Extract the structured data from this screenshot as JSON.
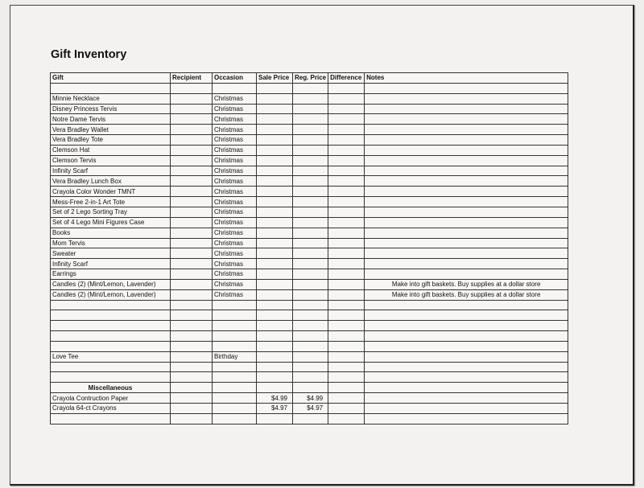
{
  "title": "Gift Inventory",
  "columns": [
    "Gift",
    "Recipient",
    "Occasion",
    "Sale Price",
    "Reg. Price",
    "Difference",
    "Notes"
  ],
  "rows": [
    {
      "gift": "",
      "recipient": "",
      "occasion": "",
      "sale": "",
      "reg": "",
      "diff": "",
      "notes": ""
    },
    {
      "gift": "Minnie Necklace",
      "recipient": "",
      "occasion": "Christmas",
      "sale": "",
      "reg": "",
      "diff": "",
      "notes": ""
    },
    {
      "gift": "Disney Princess Tervis",
      "recipient": "",
      "occasion": "Christmas",
      "sale": "",
      "reg": "",
      "diff": "",
      "notes": ""
    },
    {
      "gift": "Notre Dame Tervis",
      "recipient": "",
      "occasion": "Christmas",
      "sale": "",
      "reg": "",
      "diff": "",
      "notes": ""
    },
    {
      "gift": "Vera Bradley Wallet",
      "recipient": "",
      "occasion": "Christmas",
      "sale": "",
      "reg": "",
      "diff": "",
      "notes": ""
    },
    {
      "gift": "Vera Bradley Tote",
      "recipient": "",
      "occasion": "Christmas",
      "sale": "",
      "reg": "",
      "diff": "",
      "notes": ""
    },
    {
      "gift": "Clemson Hat",
      "recipient": "",
      "occasion": "Christmas",
      "sale": "",
      "reg": "",
      "diff": "",
      "notes": ""
    },
    {
      "gift": "Clemson Tervis",
      "recipient": "",
      "occasion": "Christmas",
      "sale": "",
      "reg": "",
      "diff": "",
      "notes": ""
    },
    {
      "gift": "Infinity Scarf",
      "recipient": "",
      "occasion": "Christmas",
      "sale": "",
      "reg": "",
      "diff": "",
      "notes": ""
    },
    {
      "gift": "Vera Bradley Lunch Box",
      "recipient": "",
      "occasion": "Christmas",
      "sale": "",
      "reg": "",
      "diff": "",
      "notes": ""
    },
    {
      "gift": "Crayola Color Wonder TMNT",
      "recipient": "",
      "occasion": "Christmas",
      "sale": "",
      "reg": "",
      "diff": "",
      "notes": ""
    },
    {
      "gift": "Mess-Free 2-in-1 Art Tote",
      "recipient": "",
      "occasion": "Christmas",
      "sale": "",
      "reg": "",
      "diff": "",
      "notes": ""
    },
    {
      "gift": "Set of 2 Lego Sorting Tray",
      "recipient": "",
      "occasion": "Christmas",
      "sale": "",
      "reg": "",
      "diff": "",
      "notes": ""
    },
    {
      "gift": "Set of 4 Lego Mini Figures Case",
      "recipient": "",
      "occasion": "Christmas",
      "sale": "",
      "reg": "",
      "diff": "",
      "notes": ""
    },
    {
      "gift": "Books",
      "recipient": "",
      "occasion": "Christmas",
      "sale": "",
      "reg": "",
      "diff": "",
      "notes": ""
    },
    {
      "gift": "Mom Tervis",
      "recipient": "",
      "occasion": "Christmas",
      "sale": "",
      "reg": "",
      "diff": "",
      "notes": ""
    },
    {
      "gift": "Sweater",
      "recipient": "",
      "occasion": "Christmas",
      "sale": "",
      "reg": "",
      "diff": "",
      "notes": ""
    },
    {
      "gift": "Infinity Scarf",
      "recipient": "",
      "occasion": "Christmas",
      "sale": "",
      "reg": "",
      "diff": "",
      "notes": ""
    },
    {
      "gift": "Earrings",
      "recipient": "",
      "occasion": "Christmas",
      "sale": "",
      "reg": "",
      "diff": "",
      "notes": ""
    },
    {
      "gift": "Candles (2) (Mint/Lemon, Lavender)",
      "recipient": "",
      "occasion": "Christmas",
      "sale": "",
      "reg": "",
      "diff": "",
      "notes": "Make into gift baskets. Buy supplies at a dollar store"
    },
    {
      "gift": "Candles (2) (Mint/Lemon, Lavender)",
      "recipient": "",
      "occasion": "Christmas",
      "sale": "",
      "reg": "",
      "diff": "",
      "notes": "Make into gift baskets. Buy supplies at a dollar store"
    },
    {
      "gift": "",
      "recipient": "",
      "occasion": "",
      "sale": "",
      "reg": "",
      "diff": "",
      "notes": ""
    },
    {
      "gift": "",
      "recipient": "",
      "occasion": "",
      "sale": "",
      "reg": "",
      "diff": "",
      "notes": ""
    },
    {
      "gift": "",
      "recipient": "",
      "occasion": "",
      "sale": "",
      "reg": "",
      "diff": "",
      "notes": ""
    },
    {
      "gift": "",
      "recipient": "",
      "occasion": "",
      "sale": "",
      "reg": "",
      "diff": "",
      "notes": ""
    },
    {
      "gift": "",
      "recipient": "",
      "occasion": "",
      "sale": "",
      "reg": "",
      "diff": "",
      "notes": ""
    },
    {
      "gift": "Love Tee",
      "recipient": "",
      "occasion": "Birthday",
      "sale": "",
      "reg": "",
      "diff": "",
      "notes": ""
    },
    {
      "gift": "",
      "recipient": "",
      "occasion": "",
      "sale": "",
      "reg": "",
      "diff": "",
      "notes": ""
    },
    {
      "gift": "",
      "recipient": "",
      "occasion": "",
      "sale": "",
      "reg": "",
      "diff": "",
      "notes": ""
    },
    {
      "gift": "Miscellaneous",
      "section": true,
      "recipient": "",
      "occasion": "",
      "sale": "",
      "reg": "",
      "diff": "",
      "notes": ""
    },
    {
      "gift": "Crayola Contruction Paper",
      "recipient": "",
      "occasion": "",
      "sale": "$4.99",
      "reg": "$4.99",
      "diff": "",
      "notes": ""
    },
    {
      "gift": "Crayola 64-ct Crayons",
      "recipient": "",
      "occasion": "",
      "sale": "$4.97",
      "reg": "$4.97",
      "diff": "",
      "notes": ""
    },
    {
      "gift": "",
      "recipient": "",
      "occasion": "",
      "sale": "",
      "reg": "",
      "diff": "",
      "notes": ""
    }
  ]
}
